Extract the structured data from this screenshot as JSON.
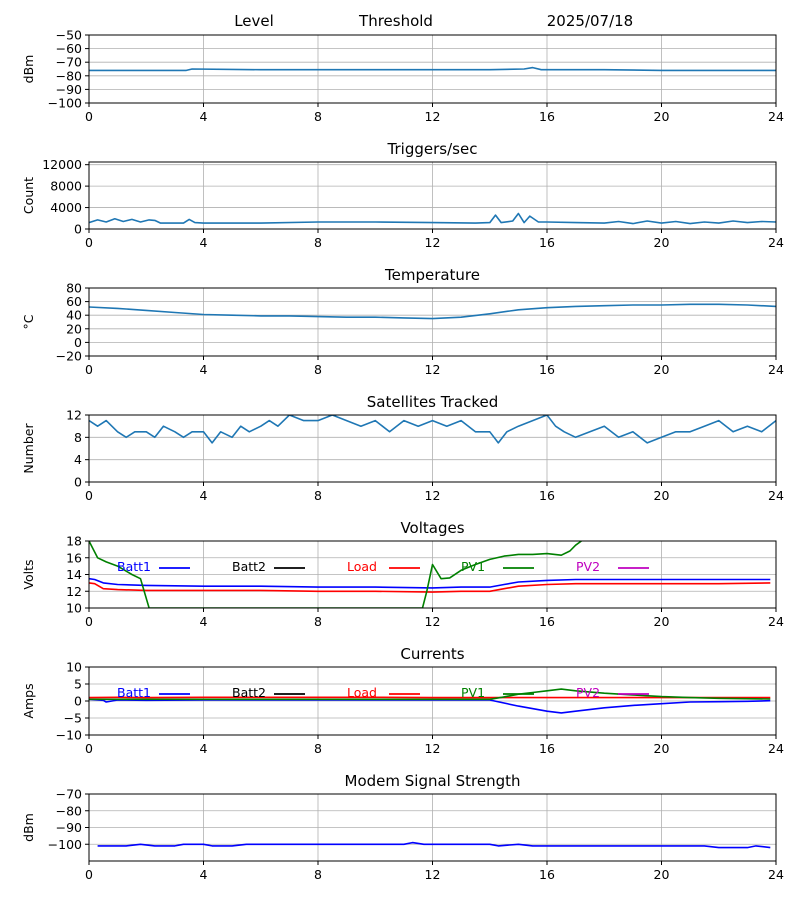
{
  "header": {
    "left": "Level",
    "middle": "Threshold",
    "date": "2025/07/18"
  },
  "chart_data": [
    {
      "type": "line",
      "title": "",
      "ylabel": "dBm",
      "xlim": [
        0,
        24
      ],
      "ylim": [
        -100,
        -50
      ],
      "xticks": [
        0,
        4,
        8,
        12,
        16,
        20,
        24
      ],
      "yticks": [
        -100,
        -90,
        -80,
        -70,
        -60,
        -50
      ],
      "grid": true,
      "series": [
        {
          "color": "#1f77b4",
          "x": [
            0,
            2,
            3.4,
            3.6,
            6,
            10,
            14,
            15.2,
            15.5,
            15.8,
            18,
            20,
            24
          ],
          "y": [
            -76,
            -76,
            -76,
            -75,
            -75.5,
            -75.5,
            -75.5,
            -75,
            -74,
            -75.5,
            -75.5,
            -76,
            -76
          ]
        }
      ]
    },
    {
      "type": "line",
      "title": "Triggers/sec",
      "ylabel": "Count",
      "xlim": [
        0,
        24
      ],
      "ylim": [
        0,
        12500
      ],
      "xticks": [
        0,
        4,
        8,
        12,
        16,
        20,
        24
      ],
      "yticks": [
        0,
        4000,
        8000,
        12000
      ],
      "grid": true,
      "series": [
        {
          "color": "#1f77b4",
          "x": [
            0,
            0.3,
            0.6,
            0.9,
            1.2,
            1.5,
            1.8,
            2.1,
            2.3,
            2.5,
            3.3,
            3.5,
            3.7,
            4,
            6,
            8,
            10,
            12,
            13.5,
            14,
            14.2,
            14.4,
            14.8,
            15,
            15.2,
            15.4,
            15.7,
            16,
            17,
            18,
            18.5,
            19,
            19.5,
            20,
            20.5,
            21,
            21.5,
            22,
            22.5,
            23,
            23.5,
            24
          ],
          "y": [
            1200,
            1700,
            1300,
            1900,
            1400,
            1800,
            1300,
            1700,
            1600,
            1100,
            1100,
            1800,
            1200,
            1100,
            1100,
            1300,
            1300,
            1200,
            1100,
            1200,
            2600,
            1200,
            1500,
            2900,
            1200,
            2400,
            1300,
            1300,
            1200,
            1100,
            1400,
            1000,
            1500,
            1100,
            1400,
            1000,
            1300,
            1100,
            1500,
            1200,
            1400,
            1300
          ]
        }
      ]
    },
    {
      "type": "line",
      "title": "Temperature",
      "ylabel": "°C",
      "xlim": [
        0,
        24
      ],
      "ylim": [
        -20,
        80
      ],
      "xticks": [
        0,
        4,
        8,
        12,
        16,
        20,
        24
      ],
      "yticks": [
        -20,
        0,
        20,
        40,
        60,
        80
      ],
      "grid": true,
      "series": [
        {
          "color": "#1f77b4",
          "x": [
            0,
            1,
            2,
            3,
            4,
            5,
            6,
            7,
            8,
            9,
            10,
            11,
            12,
            13,
            14,
            15,
            16,
            17,
            18,
            19,
            20,
            21,
            22,
            23,
            24
          ],
          "y": [
            52,
            50,
            47,
            44,
            41,
            40,
            39,
            39,
            38,
            37,
            37,
            36,
            35,
            37,
            42,
            48,
            51,
            53,
            54,
            55,
            55,
            56,
            56,
            55,
            53
          ]
        }
      ]
    },
    {
      "type": "line",
      "title": "Satellites Tracked",
      "ylabel": "Number",
      "xlim": [
        0,
        24
      ],
      "ylim": [
        0,
        12
      ],
      "xticks": [
        0,
        4,
        8,
        12,
        16,
        20,
        24
      ],
      "yticks": [
        0,
        4,
        8,
        12
      ],
      "grid": true,
      "series": [
        {
          "color": "#1f77b4",
          "x": [
            0,
            0.3,
            0.6,
            1,
            1.3,
            1.6,
            2,
            2.3,
            2.6,
            3,
            3.3,
            3.6,
            4,
            4.3,
            4.6,
            5,
            5.3,
            5.6,
            6,
            6.3,
            6.6,
            7,
            7.5,
            8,
            8.5,
            9,
            9.5,
            10,
            10.5,
            11,
            11.5,
            12,
            12.5,
            13,
            13.5,
            14,
            14.3,
            14.6,
            15,
            15.5,
            16,
            16.3,
            16.6,
            17,
            17.5,
            18,
            18.5,
            19,
            19.5,
            20,
            20.5,
            21,
            21.5,
            22,
            22.5,
            23,
            23.5,
            24
          ],
          "y": [
            11,
            10,
            11,
            9,
            8,
            9,
            9,
            8,
            10,
            9,
            8,
            9,
            9,
            7,
            9,
            8,
            10,
            9,
            10,
            11,
            10,
            12,
            11,
            11,
            12,
            11,
            10,
            11,
            9,
            11,
            10,
            11,
            10,
            11,
            9,
            9,
            7,
            9,
            10,
            11,
            12,
            10,
            9,
            8,
            9,
            10,
            8,
            9,
            7,
            8,
            9,
            9,
            10,
            11,
            9,
            10,
            9,
            11
          ]
        }
      ]
    },
    {
      "type": "line",
      "title": "Voltages",
      "ylabel": "Volts",
      "xlim": [
        0,
        24
      ],
      "ylim": [
        10,
        18
      ],
      "xticks": [
        0,
        4,
        8,
        12,
        16,
        20,
        24
      ],
      "yticks": [
        10,
        12,
        14,
        16,
        18
      ],
      "grid": true,
      "legend": "top",
      "series": [
        {
          "name": "Batt1",
          "color": "#0000ff",
          "x": [
            0,
            0.2,
            0.5,
            1,
            2,
            4,
            6,
            8,
            10,
            12,
            13,
            14,
            14.5,
            15,
            16,
            17,
            18,
            20,
            22,
            23.8
          ],
          "y": [
            13.5,
            13.4,
            13.0,
            12.8,
            12.7,
            12.6,
            12.6,
            12.5,
            12.5,
            12.4,
            12.5,
            12.5,
            12.8,
            13.1,
            13.3,
            13.4,
            13.4,
            13.4,
            13.4,
            13.4
          ]
        },
        {
          "name": "Batt2",
          "color": "#000000",
          "x": [],
          "y": []
        },
        {
          "name": "Load",
          "color": "#ff0000",
          "x": [
            0,
            0.2,
            0.5,
            1,
            2,
            4,
            6,
            8,
            10,
            12,
            13,
            14,
            14.5,
            15,
            16,
            17,
            18,
            20,
            22,
            23.8
          ],
          "y": [
            13.0,
            12.9,
            12.3,
            12.2,
            12.1,
            12.1,
            12.1,
            12.0,
            12.0,
            11.9,
            12.0,
            12.0,
            12.3,
            12.6,
            12.8,
            12.9,
            12.9,
            12.9,
            12.9,
            13.0
          ]
        },
        {
          "name": "PV1",
          "color": "#008000",
          "x": [
            0,
            0.3,
            0.6,
            1,
            1.5,
            1.8,
            2.1,
            2.15,
            11.65,
            11.8,
            12,
            12.3,
            12.6,
            13,
            13.5,
            14,
            14.5,
            15,
            15.5,
            16,
            16.5,
            16.8,
            17,
            17.2
          ],
          "y": [
            18,
            16,
            15.5,
            15,
            14,
            13.5,
            10,
            10,
            10,
            12,
            15.2,
            13.5,
            13.6,
            14.5,
            15.2,
            15.8,
            16.2,
            16.4,
            16.4,
            16.5,
            16.3,
            16.8,
            17.5,
            18
          ]
        },
        {
          "name": "PV2",
          "color": "#bf00bf",
          "x": [],
          "y": []
        }
      ]
    },
    {
      "type": "line",
      "title": "Currents",
      "ylabel": "Amps",
      "xlim": [
        0,
        24
      ],
      "ylim": [
        -10,
        10
      ],
      "xticks": [
        0,
        4,
        8,
        12,
        16,
        20,
        24
      ],
      "yticks": [
        -10,
        -5,
        0,
        5,
        10
      ],
      "grid": true,
      "legend": "top",
      "series": [
        {
          "name": "Batt1",
          "color": "#0000ff",
          "x": [
            0,
            0.5,
            0.6,
            1,
            2,
            4,
            6,
            8,
            10,
            12,
            13,
            14,
            15,
            16,
            16.5,
            17,
            18,
            19,
            20,
            21,
            22,
            23,
            23.8
          ],
          "y": [
            0.5,
            0.2,
            -0.3,
            0.3,
            0.2,
            0.3,
            0.3,
            0.3,
            0.3,
            0.3,
            0.3,
            0.3,
            -1.5,
            -3.0,
            -3.5,
            -3.0,
            -2.0,
            -1.3,
            -0.8,
            -0.3,
            -0.2,
            -0.1,
            0.1
          ]
        },
        {
          "name": "Batt2",
          "color": "#000000",
          "x": [],
          "y": []
        },
        {
          "name": "Load",
          "color": "#ff0000",
          "x": [
            0,
            1,
            2,
            4,
            6,
            8,
            10,
            12,
            14,
            16,
            18,
            20,
            22,
            23.8
          ],
          "y": [
            1.0,
            1.1,
            1.0,
            1.1,
            1.1,
            1.1,
            1.1,
            1.0,
            1.0,
            1.0,
            1.0,
            1.0,
            1.0,
            1.0
          ]
        },
        {
          "name": "PV1",
          "color": "#008000",
          "x": [
            0,
            2,
            4,
            6,
            8,
            10,
            12,
            14,
            14.5,
            15,
            15.5,
            16,
            16.5,
            17,
            18,
            19,
            20,
            21,
            22,
            23.8
          ],
          "y": [
            0.5,
            0.5,
            0.5,
            0.5,
            0.5,
            0.5,
            0.5,
            0.5,
            1.2,
            2.0,
            2.5,
            3.0,
            3.5,
            3.0,
            2.3,
            1.8,
            1.3,
            1.0,
            0.8,
            0.6
          ]
        },
        {
          "name": "PV2",
          "color": "#bf00bf",
          "x": [],
          "y": []
        }
      ]
    },
    {
      "type": "line",
      "title": "Modem Signal Strength",
      "ylabel": "dBm",
      "xlim": [
        0,
        24
      ],
      "ylim": [
        -110,
        -70
      ],
      "xticks": [
        0,
        4,
        8,
        12,
        16,
        20,
        24
      ],
      "yticks": [
        -100,
        -90,
        -80,
        -70
      ],
      "grid": true,
      "series": [
        {
          "color": "#0000ff",
          "x": [
            0.3,
            1.3,
            1.8,
            2.3,
            3,
            3.3,
            4,
            4.3,
            5,
            5.5,
            7,
            9,
            11,
            11.3,
            11.7,
            13,
            14,
            14.3,
            15,
            15.5,
            17,
            19,
            21,
            21.5,
            22,
            23,
            23.3,
            23.8
          ],
          "y": [
            -101,
            -101,
            -100,
            -101,
            -101,
            -100,
            -100,
            -101,
            -101,
            -100,
            -100,
            -100,
            -100,
            -99,
            -100,
            -100,
            -100,
            -101,
            -100,
            -101,
            -101,
            -101,
            -101,
            -101,
            -102,
            -102,
            -101,
            -102
          ]
        }
      ]
    }
  ]
}
